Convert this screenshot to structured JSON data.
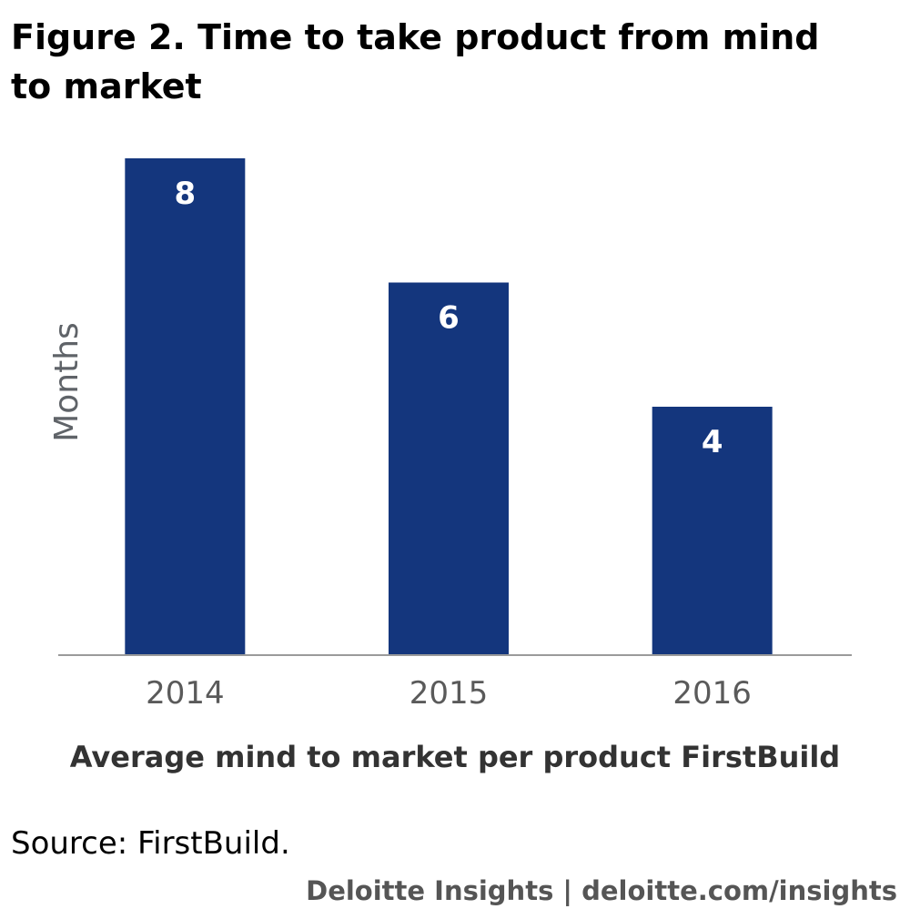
{
  "title": "Figure 2. Time to take product from mind to market",
  "chart_data": {
    "type": "bar",
    "categories": [
      "2014",
      "2015",
      "2016"
    ],
    "values": [
      8,
      6,
      4
    ],
    "xlabel": "Average mind to market per product FirstBuild",
    "ylabel": "Months",
    "ylim": [
      0,
      8
    ],
    "grid": false,
    "bar_color": "#14367d",
    "data_labels": [
      "8",
      "6",
      "4"
    ]
  },
  "source": "Source: FirstBuild.",
  "credit": "Deloitte Insights | deloitte.com/insights"
}
